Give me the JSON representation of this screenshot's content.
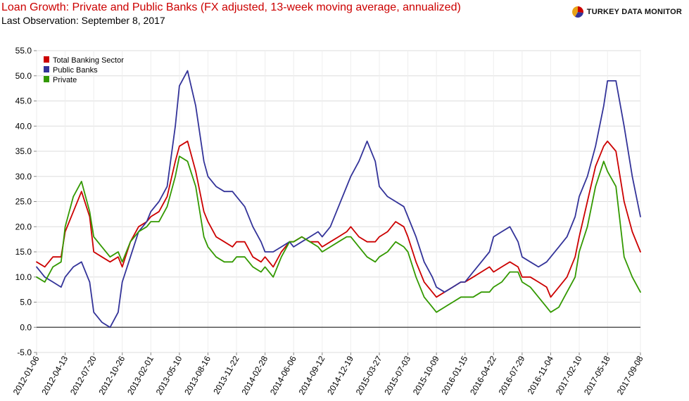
{
  "header": {
    "title": "Loan Growth: Private and Public Banks (FX adjusted, 13-week moving average, annualized)",
    "subtitle": "Last Observation: September 8, 2017",
    "brand": "TURKEY DATA MONITOR",
    "brand_logo_icon": "pie-logo-icon"
  },
  "chart_data": {
    "type": "line",
    "title": "Loan Growth: Private and Public Banks (FX adjusted, 13-week moving average, annualized)",
    "subtitle": "Last Observation: September 8, 2017",
    "xlabel": "",
    "ylabel": "",
    "ylim": [
      -5,
      55
    ],
    "y_ticks": [
      -5,
      0,
      5,
      10,
      15,
      20,
      25,
      30,
      35,
      40,
      45,
      50,
      55
    ],
    "y_tick_labels": [
      "-5.0",
      "0.0",
      "5.0",
      "10.0",
      "15.0",
      "20.0",
      "25.0",
      "30.0",
      "35.0",
      "40.0",
      "45.0",
      "50.0",
      "55.0"
    ],
    "x_ticks": [
      "2012-01-06",
      "2012-04-13",
      "2012-07-20",
      "2012-10-26",
      "2013-02-01",
      "2013-05-10",
      "2013-08-16",
      "2013-11-22",
      "2014-02-28",
      "2014-06-06",
      "2014-09-12",
      "2014-12-19",
      "2015-03-27",
      "2015-07-03",
      "2015-10-09",
      "2016-01-15",
      "2016-04-22",
      "2016-07-29",
      "2016-11-04",
      "2017-02-10",
      "2017-05-18",
      "2017-09-08"
    ],
    "grid": true,
    "legend_position": "top-left",
    "x_dates": [
      "2012-01-06",
      "2012-02-03",
      "2012-03-02",
      "2012-03-30",
      "2012-04-13",
      "2012-05-11",
      "2012-06-08",
      "2012-07-06",
      "2012-07-20",
      "2012-08-17",
      "2012-09-14",
      "2012-10-12",
      "2012-10-26",
      "2012-11-23",
      "2012-12-21",
      "2013-01-18",
      "2013-02-01",
      "2013-03-01",
      "2013-03-29",
      "2013-04-26",
      "2013-05-10",
      "2013-06-07",
      "2013-07-05",
      "2013-08-02",
      "2013-08-16",
      "2013-09-13",
      "2013-10-11",
      "2013-11-08",
      "2013-11-22",
      "2013-12-20",
      "2014-01-17",
      "2014-02-14",
      "2014-02-28",
      "2014-03-28",
      "2014-04-25",
      "2014-05-23",
      "2014-06-06",
      "2014-07-04",
      "2014-08-01",
      "2014-08-29",
      "2014-09-12",
      "2014-10-10",
      "2014-11-07",
      "2014-12-05",
      "2014-12-19",
      "2015-01-16",
      "2015-02-13",
      "2015-03-13",
      "2015-03-27",
      "2015-04-24",
      "2015-05-22",
      "2015-06-19",
      "2015-07-03",
      "2015-07-31",
      "2015-08-28",
      "2015-09-25",
      "2015-10-09",
      "2015-11-06",
      "2015-12-04",
      "2016-01-01",
      "2016-01-15",
      "2016-02-12",
      "2016-03-11",
      "2016-04-08",
      "2016-04-22",
      "2016-05-20",
      "2016-06-17",
      "2016-07-15",
      "2016-07-29",
      "2016-08-26",
      "2016-09-23",
      "2016-10-21",
      "2016-11-04",
      "2016-12-02",
      "2016-12-30",
      "2017-01-27",
      "2017-02-10",
      "2017-03-10",
      "2017-04-07",
      "2017-05-05",
      "2017-05-18",
      "2017-06-16",
      "2017-07-14",
      "2017-08-11",
      "2017-09-08"
    ],
    "series": [
      {
        "name": "Total Banking Sector",
        "color": "#cc0000",
        "values": [
          13,
          12,
          14,
          14,
          19,
          23,
          27,
          22,
          15,
          14,
          13,
          14,
          12,
          17,
          20,
          21,
          22,
          23,
          26,
          33,
          36,
          37,
          31,
          23,
          21,
          18,
          17,
          16,
          17,
          17,
          14,
          13,
          14,
          12,
          15,
          17,
          17,
          18,
          17,
          17,
          16,
          17,
          18,
          19,
          20,
          18,
          17,
          17,
          18,
          19,
          21,
          20,
          18,
          13,
          9,
          7,
          6,
          7,
          8,
          9,
          9,
          10,
          11,
          12,
          11,
          12,
          13,
          12,
          10,
          10,
          9,
          8,
          6,
          8,
          10,
          14,
          18,
          25,
          32,
          36,
          37,
          35,
          25,
          19,
          15
        ]
      },
      {
        "name": "Public Banks",
        "color": "#333399",
        "values": [
          12,
          10,
          9,
          8,
          10,
          12,
          13,
          9,
          3,
          1,
          0,
          3,
          9,
          14,
          19,
          21,
          23,
          25,
          28,
          40,
          48,
          51,
          44,
          33,
          30,
          28,
          27,
          27,
          26,
          24,
          20,
          17,
          15,
          15,
          16,
          17,
          16,
          17,
          18,
          19,
          18,
          20,
          24,
          28,
          30,
          33,
          37,
          33,
          28,
          26,
          25,
          24,
          22,
          18,
          13,
          10,
          8,
          7,
          8,
          9,
          9,
          11,
          13,
          15,
          18,
          19,
          20,
          17,
          14,
          13,
          12,
          13,
          14,
          16,
          18,
          22,
          26,
          30,
          36,
          44,
          49,
          49,
          40,
          30,
          22
        ]
      },
      {
        "name": "Private",
        "color": "#339900",
        "values": [
          10,
          9,
          12,
          13,
          20,
          26,
          29,
          23,
          18,
          16,
          14,
          15,
          13,
          17,
          19,
          20,
          21,
          21,
          24,
          30,
          34,
          33,
          28,
          18,
          16,
          14,
          13,
          13,
          14,
          14,
          12,
          11,
          12,
          10,
          14,
          17,
          17,
          18,
          17,
          16,
          15,
          16,
          17,
          18,
          18,
          16,
          14,
          13,
          14,
          15,
          17,
          16,
          15,
          10,
          6,
          4,
          3,
          4,
          5,
          6,
          6,
          6,
          7,
          7,
          8,
          9,
          11,
          11,
          9,
          8,
          6,
          4,
          3,
          4,
          7,
          10,
          15,
          20,
          28,
          33,
          31,
          28,
          14,
          10,
          7
        ]
      }
    ]
  }
}
